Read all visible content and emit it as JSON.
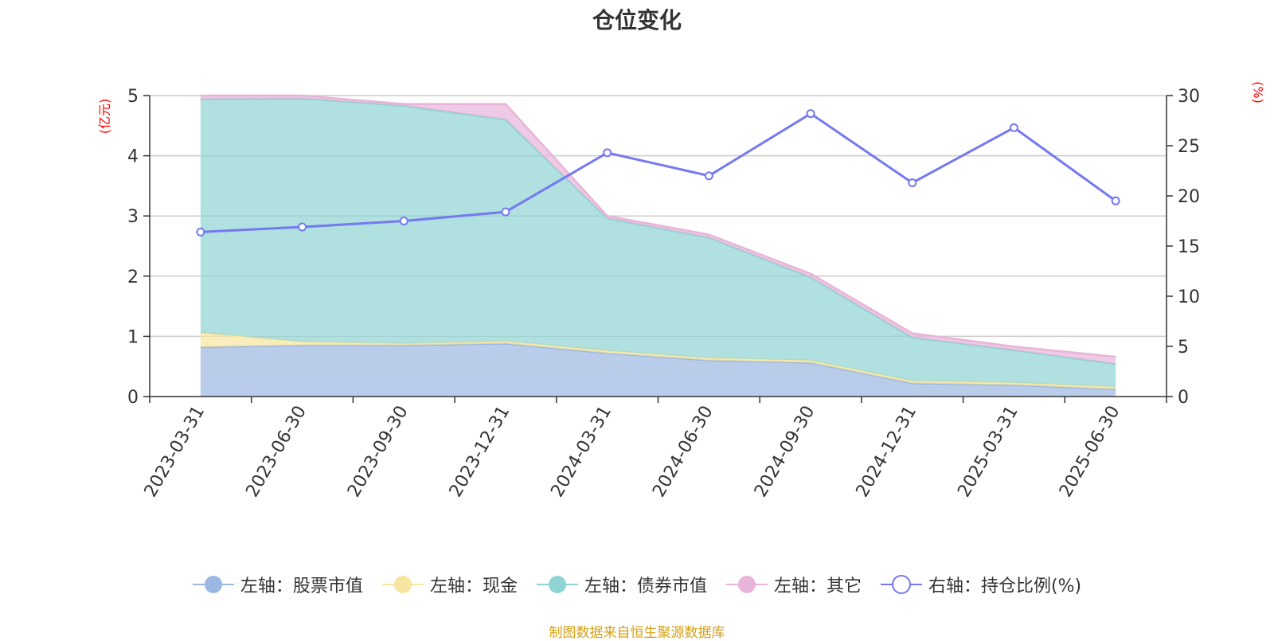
{
  "chart_data": {
    "type": "area",
    "title": "仓位变化",
    "left_axis_unit": "(亿元)",
    "right_axis_unit": "(%)",
    "categories": [
      "2023-03-31",
      "2023-06-30",
      "2023-09-30",
      "2023-12-31",
      "2024-03-31",
      "2024-06-30",
      "2024-09-30",
      "2024-12-31",
      "2025-03-31",
      "2025-06-30"
    ],
    "y_left": {
      "min": 0,
      "max": 5,
      "ticks": [
        "0",
        "1",
        "2",
        "3",
        "4",
        "5"
      ]
    },
    "y_right": {
      "min": 0,
      "max": 30,
      "ticks": [
        "0",
        "5",
        "10",
        "15",
        "20",
        "25",
        "30"
      ]
    },
    "grid": true,
    "legend_position": "bottom",
    "stacked": true,
    "series": [
      {
        "name": "左轴：股票市值",
        "axis": "left",
        "kind": "area",
        "color": "#9bb8e3",
        "values": [
          0.82,
          0.85,
          0.85,
          0.88,
          0.72,
          0.6,
          0.56,
          0.22,
          0.19,
          0.12
        ]
      },
      {
        "name": "左轴：现金",
        "axis": "left",
        "kind": "area",
        "color": "#f8e6a0",
        "values": [
          0.24,
          0.06,
          0.03,
          0.04,
          0.04,
          0.04,
          0.04,
          0.04,
          0.04,
          0.04
        ]
      },
      {
        "name": "左轴：债券市值",
        "axis": "left",
        "kind": "area",
        "color": "#8fd3d3",
        "values": [
          3.88,
          4.04,
          3.95,
          3.68,
          2.2,
          2.0,
          1.38,
          0.72,
          0.54,
          0.38
        ]
      },
      {
        "name": "左轴：其它",
        "axis": "left",
        "kind": "area",
        "color": "#e8b4d9",
        "values": [
          0.06,
          0.05,
          0.03,
          0.26,
          0.04,
          0.05,
          0.06,
          0.07,
          0.06,
          0.12
        ]
      },
      {
        "name": "右轴：持仓比例(%)",
        "axis": "right",
        "kind": "line",
        "color": "#7479f0",
        "values": [
          16.4,
          16.9,
          17.5,
          18.4,
          24.3,
          22.0,
          28.2,
          21.3,
          26.8,
          19.5
        ]
      }
    ]
  },
  "source_note": "制图数据来自恒生聚源数据库"
}
